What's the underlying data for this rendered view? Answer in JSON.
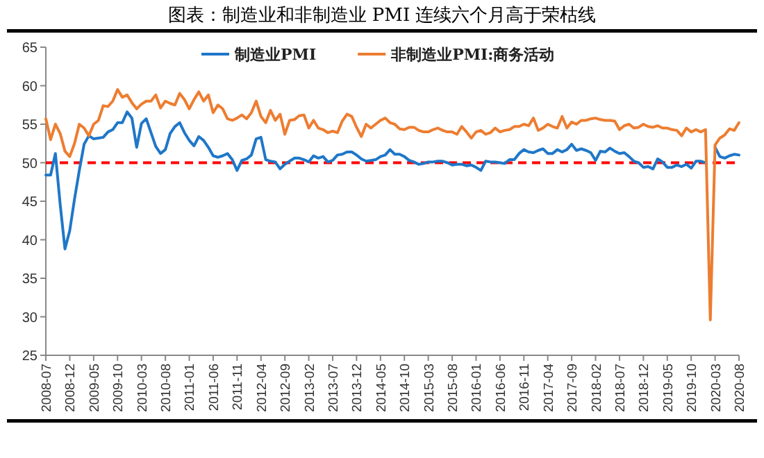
{
  "chart_data": {
    "type": "line",
    "title": "图表：制造业和非制造业 PMI 连续六个月高于荣枯线",
    "x": [
      "2008-07",
      "2008-08",
      "2008-09",
      "2008-10",
      "2008-11",
      "2008-12",
      "2009-01",
      "2009-02",
      "2009-03",
      "2009-04",
      "2009-05",
      "2009-06",
      "2009-07",
      "2009-08",
      "2009-09",
      "2009-10",
      "2009-11",
      "2009-12",
      "2010-01",
      "2010-02",
      "2010-03",
      "2010-04",
      "2010-05",
      "2010-06",
      "2010-07",
      "2010-08",
      "2010-09",
      "2010-10",
      "2010-11",
      "2010-12",
      "2011-01",
      "2011-02",
      "2011-03",
      "2011-04",
      "2011-05",
      "2011-06",
      "2011-07",
      "2011-08",
      "2011-09",
      "2011-10",
      "2011-11",
      "2011-12",
      "2012-01",
      "2012-02",
      "2012-03",
      "2012-04",
      "2012-05",
      "2012-06",
      "2012-07",
      "2012-08",
      "2012-09",
      "2012-10",
      "2012-11",
      "2012-12",
      "2013-01",
      "2013-02",
      "2013-03",
      "2013-04",
      "2013-05",
      "2013-06",
      "2013-07",
      "2013-08",
      "2013-09",
      "2013-10",
      "2013-11",
      "2013-12",
      "2014-01",
      "2014-02",
      "2014-03",
      "2014-04",
      "2014-05",
      "2014-06",
      "2014-07",
      "2014-08",
      "2014-09",
      "2014-10",
      "2014-11",
      "2014-12",
      "2015-01",
      "2015-02",
      "2015-03",
      "2015-04",
      "2015-05",
      "2015-06",
      "2015-07",
      "2015-08",
      "2015-09",
      "2015-10",
      "2015-11",
      "2015-12",
      "2016-01",
      "2016-02",
      "2016-03",
      "2016-04",
      "2016-05",
      "2016-06",
      "2016-07",
      "2016-08",
      "2016-09",
      "2016-10",
      "2016-11",
      "2016-12",
      "2017-01",
      "2017-02",
      "2017-03",
      "2017-04",
      "2017-05",
      "2017-06",
      "2017-07",
      "2017-08",
      "2017-09",
      "2017-10",
      "2017-11",
      "2017-12",
      "2018-01",
      "2018-02",
      "2018-03",
      "2018-04",
      "2018-05",
      "2018-06",
      "2018-07",
      "2018-08",
      "2018-09",
      "2018-10",
      "2018-11",
      "2018-12",
      "2019-01",
      "2019-02",
      "2019-03",
      "2019-04",
      "2019-05",
      "2019-06",
      "2019-07",
      "2019-08",
      "2019-09",
      "2019-10",
      "2019-11",
      "2019-12",
      "2020-01",
      "2020-02",
      "2020-03",
      "2020-04",
      "2020-05",
      "2020-06",
      "2020-07",
      "2020-08"
    ],
    "series": [
      {
        "name": "制造业PMI",
        "color": "#1f77c8",
        "values": [
          48.4,
          48.4,
          51.2,
          44.6,
          38.8,
          41.2,
          45.3,
          49.0,
          52.4,
          53.5,
          53.1,
          53.2,
          53.3,
          54.0,
          54.3,
          55.2,
          55.2,
          56.6,
          55.8,
          52.0,
          55.1,
          55.7,
          53.9,
          52.1,
          51.2,
          51.7,
          53.8,
          54.7,
          55.2,
          53.9,
          52.9,
          52.2,
          53.4,
          52.9,
          52.0,
          50.9,
          50.7,
          50.9,
          51.2,
          50.4,
          49.0,
          50.3,
          50.5,
          51.0,
          53.1,
          53.3,
          50.4,
          50.2,
          50.1,
          49.2,
          49.8,
          50.2,
          50.6,
          50.6,
          50.4,
          50.1,
          50.9,
          50.6,
          50.8,
          50.1,
          50.3,
          51.0,
          51.1,
          51.4,
          51.4,
          51.0,
          50.5,
          50.2,
          50.3,
          50.4,
          50.8,
          51.0,
          51.7,
          51.1,
          51.1,
          50.8,
          50.3,
          50.1,
          49.8,
          49.9,
          50.1,
          50.1,
          50.2,
          50.2,
          50.0,
          49.7,
          49.8,
          49.8,
          49.6,
          49.7,
          49.4,
          49.0,
          50.2,
          50.1,
          50.1,
          50.0,
          49.9,
          50.4,
          50.4,
          51.2,
          51.7,
          51.4,
          51.3,
          51.6,
          51.8,
          51.2,
          51.2,
          51.7,
          51.4,
          51.7,
          52.4,
          51.6,
          51.8,
          51.6,
          51.3,
          50.3,
          51.5,
          51.4,
          51.9,
          51.5,
          51.2,
          51.3,
          50.8,
          50.2,
          50.0,
          49.4,
          49.5,
          49.2,
          50.5,
          50.1,
          49.4,
          49.4,
          49.7,
          49.5,
          49.8,
          49.3,
          50.2,
          50.2,
          50.0,
          null,
          52.0,
          50.8,
          50.6,
          50.9,
          51.1,
          51.0
        ]
      },
      {
        "name": "非制造业PMI:商务活动",
        "color": "#ed7d31",
        "values": [
          55.7,
          53.0,
          55.0,
          53.8,
          51.5,
          50.8,
          52.5,
          55.0,
          54.5,
          53.5,
          55.0,
          55.5,
          57.4,
          57.3,
          58.0,
          59.5,
          58.5,
          58.8,
          57.8,
          57.0,
          57.6,
          58.0,
          58.0,
          58.8,
          57.1,
          58.0,
          57.7,
          57.5,
          59.0,
          58.2,
          57.0,
          58.2,
          59.2,
          58.0,
          58.8,
          56.5,
          57.5,
          57.0,
          55.7,
          55.5,
          55.8,
          56.2,
          55.7,
          56.5,
          58.0,
          56.0,
          55.2,
          56.8,
          55.5,
          56.3,
          53.7,
          55.5,
          55.6,
          56.1,
          56.2,
          54.5,
          55.5,
          54.5,
          54.3,
          53.9,
          54.1,
          53.9,
          55.4,
          56.3,
          56.0,
          54.6,
          53.4,
          55.0,
          54.5,
          55.0,
          55.5,
          55.8,
          55.2,
          55.0,
          54.4,
          54.3,
          54.6,
          54.6,
          54.2,
          54.0,
          54.0,
          54.3,
          54.5,
          54.2,
          54.0,
          54.0,
          53.7,
          54.7,
          54.0,
          53.2,
          54.0,
          54.2,
          53.7,
          53.9,
          54.5,
          54.0,
          54.2,
          54.3,
          54.7,
          54.7,
          55.0,
          54.8,
          55.8,
          54.2,
          54.5,
          55.0,
          54.7,
          54.5,
          56.0,
          54.5,
          55.3,
          55.0,
          55.5,
          55.5,
          55.7,
          55.8,
          55.6,
          55.5,
          55.5,
          55.4,
          54.3,
          54.8,
          55.0,
          54.5,
          54.6,
          55.0,
          54.7,
          54.6,
          54.8,
          54.5,
          54.5,
          54.3,
          54.2,
          53.5,
          54.5,
          54.0,
          54.3,
          54.0,
          54.3,
          29.6,
          52.3,
          53.2,
          53.6,
          54.4,
          54.2,
          55.2
        ]
      }
    ],
    "xlim": [
      "2008-07",
      "2020-08"
    ],
    "xticks": [
      "2008-07",
      "2008-12",
      "2009-05",
      "2009-10",
      "2010-03",
      "2010-08",
      "2011-01",
      "2011-06",
      "2011-11",
      "2012-04",
      "2012-09",
      "2013-02",
      "2013-07",
      "2013-12",
      "2014-05",
      "2014-10",
      "2015-03",
      "2015-08",
      "2016-01",
      "2016-06",
      "2016-11",
      "2017-04",
      "2017-09",
      "2018-02",
      "2018-07",
      "2018-12",
      "2019-05",
      "2019-10",
      "2020-03",
      "2020-08"
    ],
    "ylim": [
      25,
      65
    ],
    "yticks": [
      25,
      30,
      35,
      40,
      45,
      50,
      55,
      60,
      65
    ],
    "ref_lines": [
      {
        "axis": "y",
        "value": 50,
        "color": "#ff0000",
        "line_style": "dashed"
      }
    ],
    "legend": "top",
    "grid": false,
    "marker": "none",
    "line_style": "solid"
  }
}
